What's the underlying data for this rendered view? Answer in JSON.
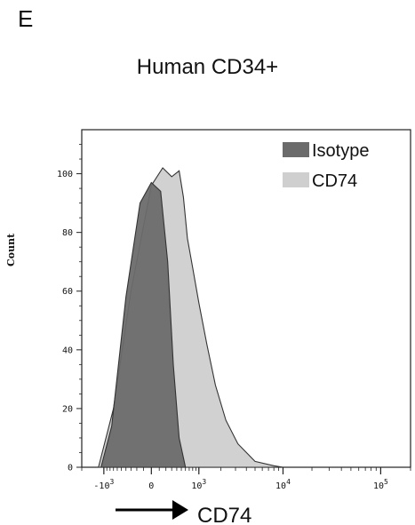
{
  "panel_label": "E",
  "chart_data": {
    "type": "area",
    "title": "Human CD34+",
    "xlabel": "CD74",
    "ylabel": "Count",
    "xscale": "biexponential",
    "ylim": [
      0,
      115
    ],
    "y_ticks": [
      0,
      20,
      40,
      60,
      80,
      100
    ],
    "x_ticks": [
      {
        "value": -1000,
        "label": "-10",
        "exp": "3"
      },
      {
        "value": 0,
        "label": "0",
        "exp": ""
      },
      {
        "value": 1000,
        "label": "10",
        "exp": "3"
      },
      {
        "value": 10000,
        "label": "10",
        "exp": "4"
      },
      {
        "value": 100000,
        "label": "10",
        "exp": "5"
      }
    ],
    "legend_position": "top-right",
    "series": [
      {
        "name": "CD74",
        "color": "#cfcfcf",
        "x": [
          -1200,
          -700,
          -300,
          0,
          150,
          300,
          450,
          550,
          650,
          800,
          1000,
          1300,
          1700,
          2300,
          3200,
          5000,
          8000,
          10000
        ],
        "y": [
          0,
          20,
          60,
          96,
          102,
          99,
          101,
          92,
          78,
          68,
          56,
          42,
          28,
          16,
          8,
          2,
          0.5,
          0
        ]
      },
      {
        "name": "Isotype",
        "color": "#6b6b6b",
        "x": [
          -1100,
          -750,
          -400,
          -150,
          0,
          120,
          230,
          330,
          450,
          600
        ],
        "y": [
          0,
          14,
          58,
          90,
          97,
          94,
          70,
          35,
          10,
          0
        ]
      }
    ]
  }
}
